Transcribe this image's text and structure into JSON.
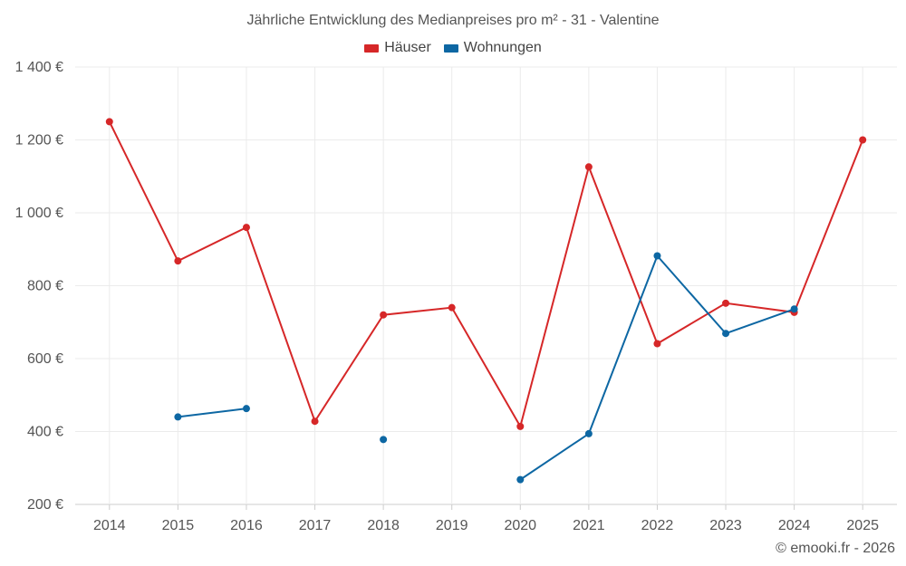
{
  "chart_data": {
    "type": "line",
    "title": "Jährliche Entwicklung des Medianpreises pro m² - 31 - Valentine",
    "xlabel": "",
    "ylabel": "",
    "categories": [
      "2014",
      "2015",
      "2016",
      "2017",
      "2018",
      "2019",
      "2020",
      "2021",
      "2022",
      "2023",
      "2024",
      "2025"
    ],
    "series": [
      {
        "name": "Häuser",
        "color": "#d62728",
        "values": [
          1250,
          868,
          960,
          428,
          720,
          740,
          414,
          1126,
          641,
          752,
          727,
          1200
        ]
      },
      {
        "name": "Wohnungen",
        "color": "#0d67a3",
        "values": [
          null,
          440,
          463,
          null,
          378,
          null,
          268,
          394,
          882,
          669,
          736,
          null
        ]
      }
    ],
    "ylim": [
      200,
      1400
    ],
    "yticks": [
      200,
      400,
      600,
      800,
      1000,
      1200,
      1400
    ],
    "ytick_labels": [
      "200 €",
      "400 €",
      "600 €",
      "800 €",
      "1 000 €",
      "1 200 €",
      "1 400 €"
    ],
    "grid": true,
    "legend_position": "top-center"
  },
  "credit": "© emooki.fr - 2026"
}
